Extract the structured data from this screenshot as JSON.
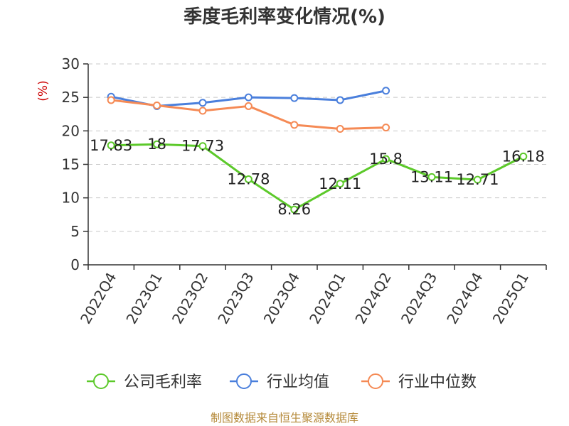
{
  "chart_data": {
    "type": "line",
    "title": "季度毛利率变化情况(%)",
    "ylabel": "(%)",
    "xlabel": "",
    "ylim": [
      0,
      30
    ],
    "yticks": [
      0,
      5,
      10,
      15,
      20,
      25,
      30
    ],
    "grid": true,
    "legend_position": "bottom",
    "categories": [
      "2022Q4",
      "2023Q1",
      "2023Q2",
      "2023Q3",
      "2023Q4",
      "2024Q1",
      "2024Q2",
      "2024Q3",
      "2024Q4",
      "2025Q1"
    ],
    "series": [
      {
        "name": "公司毛利率",
        "color": "#5cc92a",
        "show_labels": true,
        "values": [
          17.83,
          18,
          17.73,
          12.78,
          8.26,
          12.11,
          15.8,
          13.11,
          12.71,
          16.18
        ],
        "labels": [
          "17.83",
          "18",
          "17.73",
          "12.78",
          "8.26",
          "12.11",
          "15.8",
          "13.11",
          "12.71",
          "16.18"
        ]
      },
      {
        "name": "行业均值",
        "color": "#4a7fdc",
        "show_labels": false,
        "values": [
          25.1,
          23.7,
          24.2,
          25.0,
          24.9,
          24.6,
          26.0,
          null,
          null,
          null
        ]
      },
      {
        "name": "行业中位数",
        "color": "#f58a55",
        "show_labels": false,
        "values": [
          24.6,
          23.8,
          23.0,
          23.7,
          20.9,
          20.3,
          20.5,
          null,
          null,
          null
        ]
      }
    ]
  },
  "footer": {
    "source": "制图数据来自恒生聚源数据库"
  }
}
